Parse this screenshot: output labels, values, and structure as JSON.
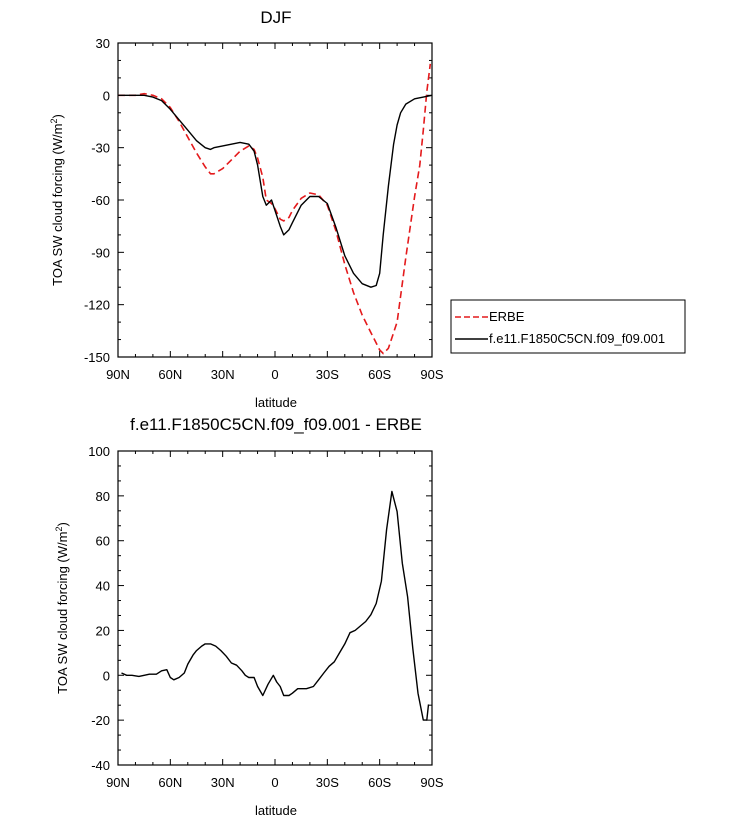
{
  "chart_data": [
    {
      "type": "line",
      "title": "DJF",
      "xlabel": "latitude",
      "ylabel_prefix": "TOA SW cloud forcing (W/m",
      "ylabel_sup": "2",
      "ylabel_suffix": ")",
      "xlim": [
        90,
        -90
      ],
      "ylim": [
        -150,
        30
      ],
      "xticks": [
        90,
        60,
        30,
        0,
        -30,
        -60,
        -90
      ],
      "xtick_labels": [
        "90N",
        "60N",
        "30N",
        "0",
        "30S",
        "60S",
        "90S"
      ],
      "yticks": [
        30,
        0,
        -30,
        -60,
        -90,
        -120,
        -150
      ],
      "ytick_labels": [
        "30",
        "0",
        "-30",
        "-60",
        "-90",
        "-120",
        "-150"
      ],
      "legend_position": "right",
      "series": [
        {
          "name": "ERBE",
          "color": "#e41a1c",
          "dash": true,
          "x": [
            90,
            85,
            80,
            75,
            70,
            65,
            60,
            55,
            50,
            45,
            40,
            37,
            35,
            30,
            25,
            20,
            15,
            12,
            10,
            7,
            5,
            2,
            0,
            -3,
            -5,
            -8,
            -10,
            -15,
            -20,
            -25,
            -30,
            -35,
            -40,
            -45,
            -50,
            -55,
            -58,
            -60,
            -62,
            -65,
            -70,
            -75,
            -80,
            -83,
            -85,
            -87,
            -89
          ],
          "y": [
            0,
            0,
            0,
            1,
            0,
            -2,
            -7,
            -15,
            -24,
            -33,
            -41,
            -45,
            -45,
            -42,
            -37,
            -32,
            -29,
            -31,
            -36,
            -47,
            -60,
            -62,
            -65,
            -71,
            -72,
            -70,
            -66,
            -59,
            -56,
            -57,
            -63,
            -78,
            -97,
            -113,
            -126,
            -136,
            -142,
            -146,
            -148,
            -145,
            -130,
            -93,
            -58,
            -40,
            -20,
            2,
            18
          ]
        },
        {
          "name": "f.e11.F1850C5CN.f09_f09.001",
          "color": "#000000",
          "dash": false,
          "x": [
            90,
            85,
            80,
            75,
            70,
            65,
            60,
            55,
            50,
            45,
            40,
            37,
            35,
            30,
            25,
            20,
            15,
            12,
            10,
            7,
            5,
            2,
            0,
            -3,
            -5,
            -8,
            -10,
            -15,
            -20,
            -25,
            -30,
            -35,
            -40,
            -45,
            -50,
            -55,
            -58,
            -60,
            -62,
            -65,
            -68,
            -70,
            -72,
            -75,
            -80,
            -85,
            -90
          ],
          "y": [
            0,
            0,
            0,
            0,
            -1,
            -3,
            -8,
            -14,
            -20,
            -26,
            -30,
            -31,
            -30,
            -29,
            -28,
            -27,
            -28,
            -32,
            -40,
            -58,
            -63,
            -60,
            -66,
            -75,
            -80,
            -77,
            -73,
            -63,
            -58,
            -58,
            -62,
            -76,
            -92,
            -102,
            -108,
            -110,
            -109,
            -102,
            -80,
            -52,
            -28,
            -17,
            -10,
            -5,
            -2,
            -1,
            0
          ]
        }
      ]
    },
    {
      "type": "line",
      "title": "f.e11.F1850C5CN.f09_f09.001 - ERBE",
      "xlabel": "latitude",
      "ylabel_prefix": "TOA SW cloud forcing (W/m",
      "ylabel_sup": "2",
      "ylabel_suffix": ")",
      "xlim": [
        90,
        -90
      ],
      "ylim": [
        -40,
        100
      ],
      "xticks": [
        90,
        60,
        30,
        0,
        -30,
        -60,
        -90
      ],
      "xtick_labels": [
        "90N",
        "60N",
        "30N",
        "0",
        "30S",
        "60S",
        "90S"
      ],
      "yticks": [
        100,
        80,
        60,
        40,
        20,
        0,
        -20,
        -40
      ],
      "ytick_labels": [
        "100",
        "80",
        "60",
        "40",
        "20",
        "0",
        "-20",
        "-40"
      ],
      "series": [
        {
          "color": "#000000",
          "dash": false,
          "x": [
            88,
            85,
            82,
            78,
            75,
            72,
            68,
            65,
            62,
            60,
            58,
            55,
            52,
            50,
            47,
            45,
            42,
            40,
            37,
            34,
            31,
            28,
            25,
            22,
            19,
            17,
            15,
            12,
            10,
            7,
            4,
            1,
            -1,
            -3,
            -5,
            -8,
            -10,
            -13,
            -15,
            -18,
            -22,
            -25,
            -28,
            -31,
            -34,
            -37,
            -40,
            -43,
            -46,
            -49,
            -52,
            -55,
            -58,
            -61,
            -64,
            -67,
            -70,
            -73,
            -76,
            -79,
            -82,
            -85,
            -87,
            -88
          ],
          "y": [
            1,
            0,
            0,
            -0.5,
            0,
            0.5,
            0.5,
            2,
            2.5,
            -1,
            -2,
            -1,
            1,
            5,
            9,
            11,
            13,
            14,
            14,
            13,
            11,
            8.5,
            5.5,
            4.5,
            2,
            0,
            -1,
            -1,
            -5,
            -9,
            -4,
            0,
            -3,
            -5,
            -9,
            -9,
            -8,
            -6,
            -6,
            -6,
            -5,
            -2,
            1,
            4,
            6,
            10,
            14,
            19,
            20,
            22,
            24,
            27,
            32,
            42,
            65,
            82,
            73,
            50,
            35,
            12,
            -8,
            -20,
            -20,
            -13
          ]
        }
      ]
    }
  ]
}
